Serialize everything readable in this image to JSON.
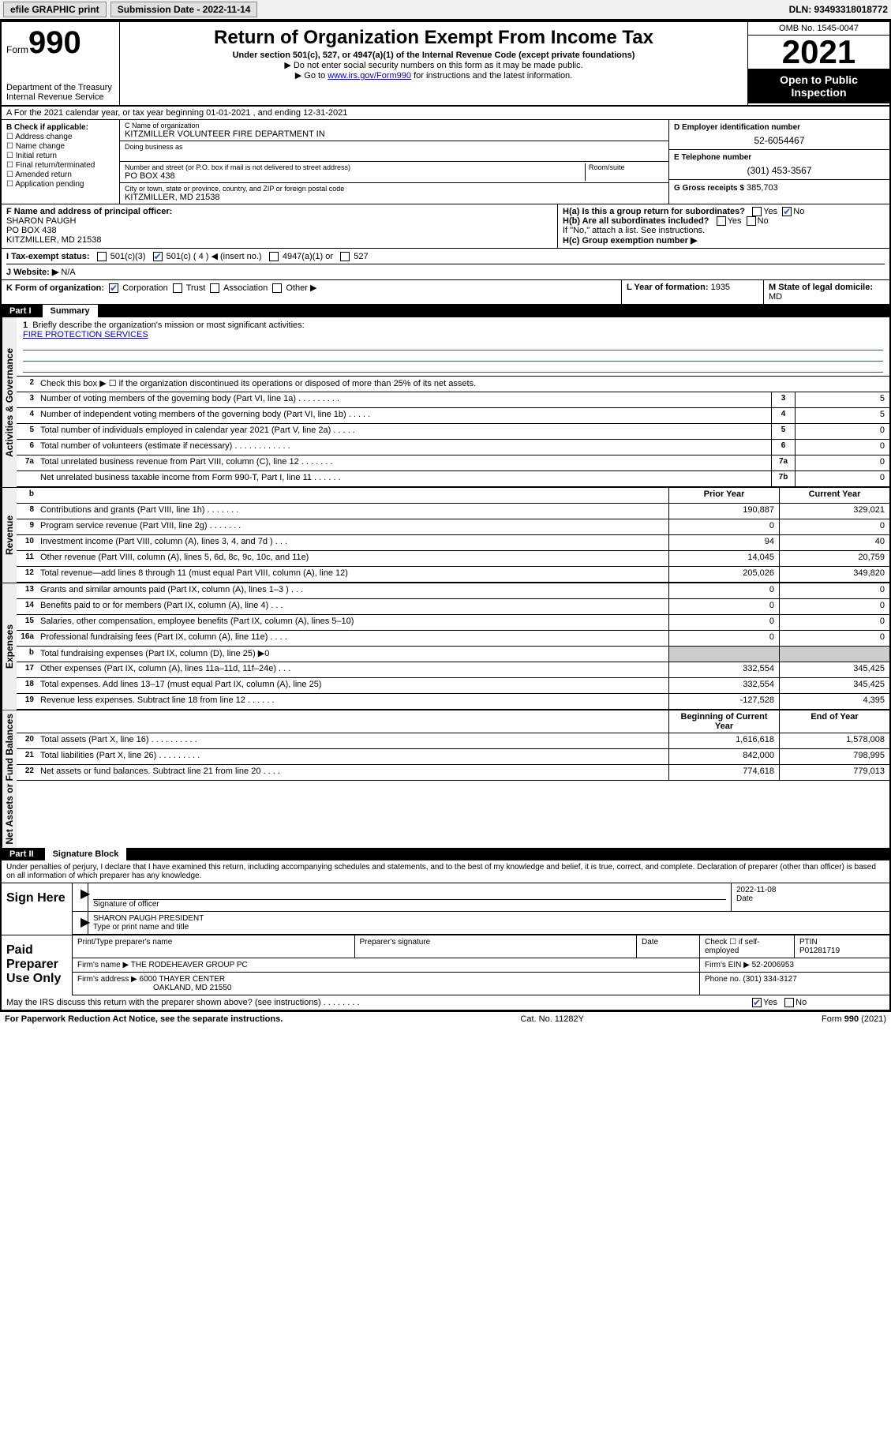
{
  "topbar": {
    "efile": "efile GRAPHIC print",
    "sub_label": "Submission Date - 2022-11-14",
    "dln": "DLN: 93493318018772"
  },
  "header": {
    "form_word": "Form",
    "form_num": "990",
    "dept": "Department of the Treasury\nInternal Revenue Service",
    "title": "Return of Organization Exempt From Income Tax",
    "sub": "Under section 501(c), 527, or 4947(a)(1) of the Internal Revenue Code (except private foundations)",
    "note1": "▶ Do not enter social security numbers on this form as it may be made public.",
    "note2_pre": "▶ Go to ",
    "note2_link": "www.irs.gov/Form990",
    "note2_post": " for instructions and the latest information.",
    "omb": "OMB No. 1545-0047",
    "year": "2021",
    "open": "Open to Public Inspection"
  },
  "rowA": "A For the 2021 calendar year, or tax year beginning 01-01-2021  , and ending 12-31-2021",
  "boxB": {
    "title": "B Check if applicable:",
    "items": [
      "Address change",
      "Name change",
      "Initial return",
      "Final return/terminated",
      "Amended return",
      "Application pending"
    ]
  },
  "boxC": {
    "name_lbl": "C Name of organization",
    "name": "KITZMILLER VOLUNTEER FIRE DEPARTMENT IN",
    "dba_lbl": "Doing business as",
    "dba": "",
    "street_lbl": "Number and street (or P.O. box if mail is not delivered to street address)",
    "room_lbl": "Room/suite",
    "street": "PO BOX 438",
    "city_lbl": "City or town, state or province, country, and ZIP or foreign postal code",
    "city": "KITZMILLER, MD  21538"
  },
  "boxD": {
    "lbl": "D Employer identification number",
    "val": "52-6054467"
  },
  "boxE": {
    "lbl": "E Telephone number",
    "val": "(301) 453-3567"
  },
  "boxG": {
    "lbl": "G Gross receipts $",
    "val": "385,703"
  },
  "boxF": {
    "lbl": "F Name and address of principal officer:",
    "name": "SHARON PAUGH",
    "addr1": "PO BOX 438",
    "addr2": "KITZMILLER, MD  21538"
  },
  "boxH": {
    "ha": "H(a)  Is this a group return for subordinates?",
    "ha_yes": "Yes",
    "ha_no": "No",
    "hb": "H(b)  Are all subordinates included?",
    "hb_yes": "Yes",
    "hb_no": "No",
    "hnote": "If \"No,\" attach a list. See instructions.",
    "hc": "H(c)  Group exemption number ▶"
  },
  "rowI": {
    "lbl": "I    Tax-exempt status:",
    "opts": [
      "501(c)(3)",
      "501(c) ( 4 ) ◀ (insert no.)",
      "4947(a)(1) or",
      "527"
    ]
  },
  "rowJ": {
    "lbl": "J    Website: ▶",
    "val": "N/A"
  },
  "rowK": {
    "lbl": "K Form of organization:",
    "opts": [
      "Corporation",
      "Trust",
      "Association",
      "Other ▶"
    ]
  },
  "rowL": {
    "lbl": "L Year of formation:",
    "val": "1935"
  },
  "rowM": {
    "lbl": "M State of legal domicile:",
    "val": "MD"
  },
  "part1": {
    "num": "Part I",
    "title": "Summary"
  },
  "summary": {
    "q1": "Briefly describe the organization's mission or most significant activities:",
    "mission": "FIRE PROTECTION SERVICES",
    "q2": "Check this box ▶ ☐  if the organization discontinued its operations or disposed of more than 25% of its net assets.",
    "lines_gov": [
      {
        "n": "3",
        "d": "Number of voting members of the governing body (Part VI, line 1a)  .   .   .   .   .   .   .   .   .",
        "box": "3",
        "v": "5"
      },
      {
        "n": "4",
        "d": "Number of independent voting members of the governing body (Part VI, line 1b)  .   .   .   .   .",
        "box": "4",
        "v": "5"
      },
      {
        "n": "5",
        "d": "Total number of individuals employed in calendar year 2021 (Part V, line 2a)  .  .  .  .  .",
        "box": "5",
        "v": "0"
      },
      {
        "n": "6",
        "d": "Total number of volunteers (estimate if necessary)  .   .   .   .   .   .   .   .   .   .   .   .",
        "box": "6",
        "v": "0"
      },
      {
        "n": "7a",
        "d": "Total unrelated business revenue from Part VIII, column (C), line 12  .   .   .   .   .   .   .",
        "box": "7a",
        "v": "0"
      },
      {
        "n": "",
        "d": "Net unrelated business taxable income from Form 990-T, Part I, line 11  .   .   .   .   .   .",
        "box": "7b",
        "v": "0"
      }
    ],
    "col_prior": "Prior Year",
    "col_curr": "Current Year",
    "lines_rev": [
      {
        "n": "8",
        "d": "Contributions and grants (Part VIII, line 1h)  .   .   .   .   .   .   .",
        "p": "190,887",
        "c": "329,021"
      },
      {
        "n": "9",
        "d": "Program service revenue (Part VIII, line 2g)  .   .   .   .   .   .   .",
        "p": "0",
        "c": "0"
      },
      {
        "n": "10",
        "d": "Investment income (Part VIII, column (A), lines 3, 4, and 7d )  .   .   .",
        "p": "94",
        "c": "40"
      },
      {
        "n": "11",
        "d": "Other revenue (Part VIII, column (A), lines 5, 6d, 8c, 9c, 10c, and 11e)",
        "p": "14,045",
        "c": "20,759"
      },
      {
        "n": "12",
        "d": "Total revenue—add lines 8 through 11 (must equal Part VIII, column (A), line 12)",
        "p": "205,026",
        "c": "349,820"
      }
    ],
    "lines_exp": [
      {
        "n": "13",
        "d": "Grants and similar amounts paid (Part IX, column (A), lines 1–3 )  .   .   .",
        "p": "0",
        "c": "0"
      },
      {
        "n": "14",
        "d": "Benefits paid to or for members (Part IX, column (A), line 4)  .  .  .",
        "p": "0",
        "c": "0"
      },
      {
        "n": "15",
        "d": "Salaries, other compensation, employee benefits (Part IX, column (A), lines 5–10)",
        "p": "0",
        "c": "0"
      },
      {
        "n": "16a",
        "d": "Professional fundraising fees (Part IX, column (A), line 11e)  .   .   .   .",
        "p": "0",
        "c": "0"
      },
      {
        "n": "b",
        "d": "Total fundraising expenses (Part IX, column (D), line 25) ▶0",
        "p": "",
        "c": "",
        "shade": true
      },
      {
        "n": "17",
        "d": "Other expenses (Part IX, column (A), lines 11a–11d, 11f–24e)  .   .   .",
        "p": "332,554",
        "c": "345,425"
      },
      {
        "n": "18",
        "d": "Total expenses. Add lines 13–17 (must equal Part IX, column (A), line 25)",
        "p": "332,554",
        "c": "345,425"
      },
      {
        "n": "19",
        "d": "Revenue less expenses. Subtract line 18 from line 12  .   .   .   .   .   .",
        "p": "-127,528",
        "c": "4,395"
      }
    ],
    "col_begin": "Beginning of Current Year",
    "col_end": "End of Year",
    "lines_net": [
      {
        "n": "20",
        "d": "Total assets (Part X, line 16)  .   .   .   .   .   .   .   .   .   .",
        "p": "1,616,618",
        "c": "1,578,008"
      },
      {
        "n": "21",
        "d": "Total liabilities (Part X, line 26)  .   .   .   .   .   .   .   .   .",
        "p": "842,000",
        "c": "798,995"
      },
      {
        "n": "22",
        "d": "Net assets or fund balances. Subtract line 21 from line 20  .   .   .   .",
        "p": "774,618",
        "c": "779,013"
      }
    ],
    "vtabs": {
      "gov": "Activities & Governance",
      "rev": "Revenue",
      "exp": "Expenses",
      "net": "Net Assets or Fund Balances"
    }
  },
  "part2": {
    "num": "Part II",
    "title": "Signature Block"
  },
  "decl": "Under penalties of perjury, I declare that I have examined this return, including accompanying schedules and statements, and to the best of my knowledge and belief, it is true, correct, and complete. Declaration of preparer (other than officer) is based on all information of which preparer has any knowledge.",
  "sign": {
    "here": "Sign Here",
    "sig_lbl": "Signature of officer",
    "date_lbl": "Date",
    "date": "2022-11-08",
    "name_lbl": "Type or print name and title",
    "name": "SHARON PAUGH  PRESIDENT"
  },
  "paid": {
    "title": "Paid Preparer Use Only",
    "p1": "Print/Type preparer's name",
    "p2": "Preparer's signature",
    "p3": "Date",
    "p4a": "Check ☐ if self-employed",
    "p4b_lbl": "PTIN",
    "p4b": "P01281719",
    "firm_lbl": "Firm's name    ▶",
    "firm": "THE RODEHEAVER GROUP PC",
    "ein_lbl": "Firm's EIN ▶",
    "ein": "52-2006953",
    "addr_lbl": "Firm's address ▶",
    "addr1": "6000 THAYER CENTER",
    "addr2": "OAKLAND, MD  21550",
    "phone_lbl": "Phone no.",
    "phone": "(301) 334-3127"
  },
  "discuss": {
    "q": "May the IRS discuss this return with the preparer shown above? (see instructions)  .   .   .   .   .   .   .   .",
    "yes": "Yes",
    "no": "No"
  },
  "footer": {
    "pra": "For Paperwork Reduction Act Notice, see the separate instructions.",
    "cat": "Cat. No. 11282Y",
    "form": "Form 990 (2021)"
  },
  "style": {
    "link_color": "#0000cc",
    "check_color": "#2255cc",
    "rule_color": "#3355cc"
  }
}
